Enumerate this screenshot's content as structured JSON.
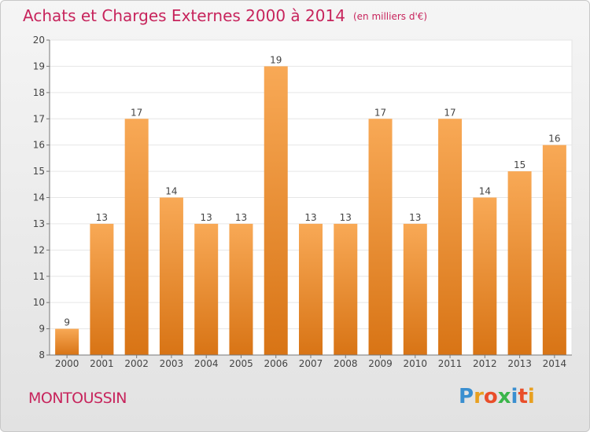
{
  "header": {
    "title": "Achats et Charges Externes 2000 à 2014",
    "unit": "(en milliers d'€)"
  },
  "location": "MONTOUSSIN",
  "brand": {
    "text": "Proxiti",
    "letter_colors": [
      "#3a8fd0",
      "#e8a020",
      "#e94e2a",
      "#3ab54a",
      "#3a8fd0",
      "#e94e2a",
      "#e8a020"
    ]
  },
  "chart_data": {
    "type": "bar",
    "categories": [
      "2000",
      "2001",
      "2002",
      "2003",
      "2004",
      "2005",
      "2006",
      "2007",
      "2008",
      "2009",
      "2010",
      "2011",
      "2012",
      "2013",
      "2014"
    ],
    "values": [
      9,
      13,
      17,
      14,
      13,
      13,
      19,
      13,
      13,
      17,
      13,
      17,
      14,
      15,
      16
    ],
    "ylim": [
      8,
      20
    ],
    "yticks": [
      8,
      9,
      10,
      11,
      12,
      13,
      14,
      15,
      16,
      17,
      18,
      19,
      20
    ],
    "grid": true,
    "bar_color_top": "#f8a956",
    "bar_color_bottom": "#d87415"
  }
}
